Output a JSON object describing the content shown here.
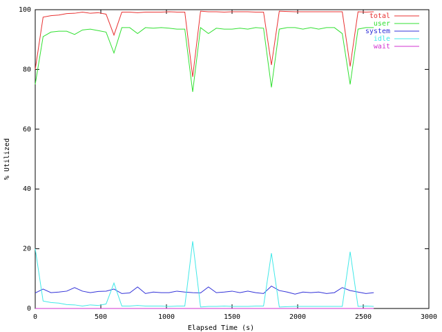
{
  "chart_data": {
    "type": "line",
    "xlabel": "Elapsed Time (s)",
    "ylabel": "% Utilized",
    "xlim": [
      0,
      3000
    ],
    "xticks": [
      0,
      500,
      1000,
      1500,
      2000,
      2500,
      3000
    ],
    "ylim": [
      0,
      100
    ],
    "yticks": [
      0,
      20,
      40,
      60,
      80,
      100
    ],
    "legend": "top-right",
    "x": [
      0,
      60,
      120,
      180,
      240,
      300,
      360,
      420,
      480,
      540,
      600,
      660,
      720,
      780,
      840,
      900,
      960,
      1020,
      1080,
      1140,
      1200,
      1260,
      1320,
      1380,
      1440,
      1500,
      1560,
      1620,
      1680,
      1740,
      1800,
      1860,
      1920,
      1980,
      2040,
      2100,
      2160,
      2220,
      2280,
      2340,
      2400,
      2460,
      2520,
      2580
    ],
    "series": [
      {
        "name": "total",
        "color": "#e83030",
        "values": [
          80,
          97.5,
          98,
          98.2,
          98.7,
          98.8,
          99.2,
          98.8,
          99,
          98.5,
          91.5,
          99.2,
          99.2,
          99,
          99.2,
          99.2,
          99.2,
          99.3,
          99.2,
          99.2,
          77.5,
          99.5,
          99.3,
          99.3,
          99.2,
          99.3,
          99.3,
          99.3,
          99.2,
          99.2,
          81.5,
          99.5,
          99.4,
          99.3,
          99.3,
          99.3,
          99.3,
          99.3,
          99.3,
          99.3,
          81,
          99.3,
          99.2,
          99.3
        ]
      },
      {
        "name": "user",
        "color": "#30e030",
        "values": [
          75,
          91,
          92.5,
          92.8,
          92.8,
          91.7,
          93.2,
          93.5,
          93,
          92.5,
          85.5,
          94,
          94,
          92,
          94,
          93.8,
          94,
          93.8,
          93.5,
          93.5,
          72.5,
          94,
          92,
          93.8,
          93.5,
          93.5,
          93.8,
          93.5,
          94,
          93.8,
          74,
          93.5,
          94,
          94,
          93.5,
          94,
          93.5,
          94,
          94,
          92,
          75,
          93.5,
          94,
          94
        ]
      },
      {
        "name": "system",
        "color": "#3030d8",
        "values": [
          5.2,
          6.5,
          5.3,
          5.5,
          5.8,
          7,
          5.8,
          5.3,
          5.7,
          5.8,
          6.5,
          5,
          5.2,
          7.2,
          5,
          5.5,
          5.3,
          5.3,
          5.8,
          5.5,
          5.3,
          5.2,
          7.2,
          5.3,
          5.5,
          5.8,
          5.3,
          5.8,
          5.3,
          5,
          7.5,
          6,
          5.5,
          4.8,
          5.5,
          5.3,
          5.5,
          5,
          5.3,
          7,
          6,
          5.5,
          5,
          5.3
        ]
      },
      {
        "name": "idle",
        "color": "#40e8e8",
        "values": [
          20,
          2.5,
          2,
          1.8,
          1.3,
          1.2,
          0.8,
          1.2,
          1,
          1.5,
          8.5,
          0.8,
          0.8,
          1,
          0.8,
          0.8,
          0.8,
          0.7,
          0.8,
          0.8,
          22.5,
          0.5,
          0.7,
          0.7,
          0.8,
          0.7,
          0.7,
          0.7,
          0.8,
          0.8,
          18.5,
          0.5,
          0.6,
          0.7,
          0.7,
          0.7,
          0.7,
          0.7,
          0.7,
          0.7,
          19,
          0.7,
          0.8,
          0.7
        ]
      },
      {
        "name": "wait",
        "color": "#d030d0",
        "values": [
          0,
          0,
          0,
          0,
          0,
          0,
          0,
          0,
          0,
          0,
          0,
          0,
          0,
          0,
          0,
          0,
          0,
          0,
          0,
          0,
          0,
          0,
          0,
          0,
          0,
          0,
          0,
          0,
          0,
          0,
          0,
          0,
          0,
          0,
          0,
          0,
          0,
          0,
          0,
          0,
          0,
          0,
          0,
          0
        ]
      }
    ]
  }
}
